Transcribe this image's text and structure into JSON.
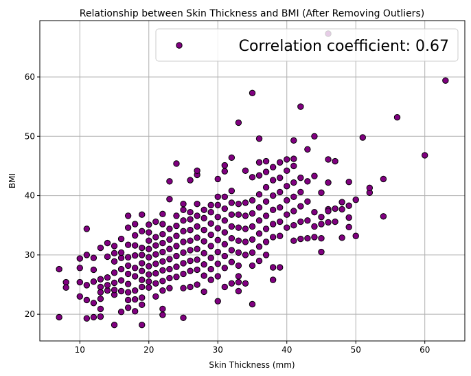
{
  "chart_data": {
    "type": "scatter",
    "title": "Relationship between Skin Thickness and BMI (After Removing Outliers)",
    "xlabel": "Skin Thickness (mm)",
    "ylabel": "BMI",
    "xlim": [
      4.2,
      65.8
    ],
    "ylim": [
      15.5,
      69.5
    ],
    "xticks": [
      10,
      20,
      30,
      40,
      50,
      60
    ],
    "yticks": [
      20,
      30,
      40,
      50,
      60
    ],
    "grid": true,
    "legend_position": "top-right",
    "colors": {
      "marker_fill": "#800080",
      "marker_edge": "#000000",
      "grid": "#b0b0b0"
    },
    "series": [
      {
        "name": "Correlation coefficient: 0.67",
        "points": [
          [
            7,
            19.5
          ],
          [
            7,
            27.6
          ],
          [
            8,
            25.4
          ],
          [
            8,
            24.5
          ],
          [
            10,
            29.4
          ],
          [
            10,
            25.4
          ],
          [
            10,
            23.0
          ],
          [
            10,
            27.8
          ],
          [
            11,
            34.4
          ],
          [
            11,
            30.0
          ],
          [
            11,
            22.4
          ],
          [
            11,
            19.3
          ],
          [
            11,
            24.9
          ],
          [
            12,
            19.5
          ],
          [
            12,
            21.9
          ],
          [
            12,
            25.5
          ],
          [
            12,
            27.5
          ],
          [
            12,
            29.5
          ],
          [
            13,
            19.6
          ],
          [
            13,
            20.9
          ],
          [
            13,
            22.6
          ],
          [
            13,
            23.7
          ],
          [
            13,
            24.6
          ],
          [
            13,
            25.9
          ],
          [
            13,
            31.2
          ],
          [
            14,
            24.0
          ],
          [
            14,
            24.9
          ],
          [
            14,
            26.2
          ],
          [
            14,
            29.7
          ],
          [
            14,
            32.0
          ],
          [
            15,
            18.2
          ],
          [
            15,
            23.3
          ],
          [
            15,
            24.1
          ],
          [
            15,
            25.3
          ],
          [
            15,
            27.0
          ],
          [
            15,
            28.9
          ],
          [
            15,
            30.3
          ],
          [
            15,
            31.5
          ],
          [
            16,
            20.4
          ],
          [
            16,
            23.9
          ],
          [
            16,
            25.7
          ],
          [
            16,
            27.6
          ],
          [
            16,
            29.5
          ],
          [
            16,
            30.4
          ],
          [
            16,
            32.7
          ],
          [
            17,
            21.1
          ],
          [
            17,
            22.4
          ],
          [
            17,
            23.7
          ],
          [
            17,
            25.1
          ],
          [
            17,
            26.8
          ],
          [
            17,
            28.2
          ],
          [
            17,
            29.6
          ],
          [
            17,
            31.7
          ],
          [
            17,
            34.6
          ],
          [
            17,
            36.6
          ],
          [
            18,
            20.5
          ],
          [
            18,
            22.5
          ],
          [
            18,
            24.0
          ],
          [
            18,
            26.4
          ],
          [
            18,
            27.8
          ],
          [
            18,
            29.9
          ],
          [
            18,
            31.6
          ],
          [
            18,
            33.3
          ],
          [
            18,
            35.2
          ],
          [
            19,
            18.2
          ],
          [
            19,
            21.6
          ],
          [
            19,
            22.8
          ],
          [
            19,
            24.6
          ],
          [
            19,
            25.8
          ],
          [
            19,
            27.3
          ],
          [
            19,
            28.6
          ],
          [
            19,
            30.0
          ],
          [
            19,
            31.2
          ],
          [
            19,
            34.0
          ],
          [
            19,
            36.8
          ],
          [
            20,
            24.5
          ],
          [
            20,
            25.5
          ],
          [
            20,
            26.7
          ],
          [
            20,
            28.1
          ],
          [
            20,
            29.6
          ],
          [
            20,
            31.0
          ],
          [
            20,
            32.4
          ],
          [
            20,
            33.8
          ],
          [
            20,
            35.1
          ],
          [
            21,
            23.0
          ],
          [
            21,
            25.2
          ],
          [
            21,
            26.9
          ],
          [
            21,
            28.5
          ],
          [
            21,
            30.1
          ],
          [
            21,
            31.6
          ],
          [
            21,
            33.0
          ],
          [
            21,
            35.6
          ],
          [
            22,
            19.9
          ],
          [
            22,
            20.9
          ],
          [
            22,
            24.0
          ],
          [
            22,
            25.6
          ],
          [
            22,
            27.4
          ],
          [
            22,
            28.9
          ],
          [
            22,
            30.5
          ],
          [
            22,
            32.0
          ],
          [
            22,
            33.5
          ],
          [
            22,
            35.2
          ],
          [
            22,
            36.9
          ],
          [
            23,
            24.4
          ],
          [
            23,
            26.1
          ],
          [
            23,
            27.6
          ],
          [
            23,
            29.3
          ],
          [
            23,
            31.0
          ],
          [
            23,
            32.6
          ],
          [
            23,
            34.4
          ],
          [
            23,
            42.4
          ],
          [
            23,
            39.4
          ],
          [
            24,
            45.4
          ],
          [
            24,
            26.3
          ],
          [
            24,
            28.0
          ],
          [
            24,
            29.8
          ],
          [
            24,
            31.5
          ],
          [
            24,
            33.2
          ],
          [
            24,
            34.9
          ],
          [
            24,
            36.6
          ],
          [
            25,
            19.4
          ],
          [
            25,
            24.4
          ],
          [
            25,
            26.8
          ],
          [
            25,
            28.6
          ],
          [
            25,
            30.4
          ],
          [
            25,
            32.2
          ],
          [
            25,
            34.0
          ],
          [
            25,
            35.8
          ],
          [
            25,
            37.6
          ],
          [
            25,
            38.6
          ],
          [
            26,
            24.6
          ],
          [
            26,
            27.3
          ],
          [
            26,
            29.0
          ],
          [
            26,
            30.8
          ],
          [
            26,
            32.4
          ],
          [
            26,
            34.2
          ],
          [
            26,
            36.0
          ],
          [
            26,
            37.2
          ],
          [
            26,
            42.6
          ],
          [
            27,
            25.0
          ],
          [
            27,
            27.5
          ],
          [
            27,
            29.2
          ],
          [
            27,
            31.0
          ],
          [
            27,
            32.9
          ],
          [
            27,
            34.8
          ],
          [
            27,
            36.6
          ],
          [
            27,
            38.6
          ],
          [
            27,
            43.5
          ],
          [
            27,
            44.2
          ],
          [
            28,
            23.8
          ],
          [
            28,
            26.5
          ],
          [
            28,
            28.4
          ],
          [
            28,
            30.3
          ],
          [
            28,
            32.3
          ],
          [
            28,
            34.2
          ],
          [
            28,
            36.2
          ],
          [
            28,
            37.6
          ],
          [
            29,
            25.8
          ],
          [
            29,
            27.6
          ],
          [
            29,
            29.5
          ],
          [
            29,
            31.5
          ],
          [
            29,
            33.4
          ],
          [
            29,
            35.3
          ],
          [
            29,
            37.2
          ],
          [
            29,
            38.4
          ],
          [
            30,
            22.2
          ],
          [
            30,
            26.4
          ],
          [
            30,
            28.5
          ],
          [
            30,
            30.5
          ],
          [
            30,
            32.5
          ],
          [
            30,
            34.5
          ],
          [
            30,
            36.4
          ],
          [
            30,
            38.4
          ],
          [
            30,
            39.8
          ],
          [
            30,
            42.8
          ],
          [
            31,
            24.6
          ],
          [
            31,
            27.8
          ],
          [
            31,
            29.8
          ],
          [
            31,
            31.8
          ],
          [
            31,
            33.8
          ],
          [
            31,
            35.8
          ],
          [
            31,
            37.8
          ],
          [
            31,
            39.8
          ],
          [
            31,
            44.1
          ],
          [
            31,
            45.1
          ],
          [
            32,
            25.2
          ],
          [
            32,
            28.8
          ],
          [
            32,
            30.8
          ],
          [
            32,
            32.8
          ],
          [
            32,
            34.8
          ],
          [
            32,
            36.8
          ],
          [
            32,
            38.8
          ],
          [
            32,
            40.8
          ],
          [
            32,
            46.4
          ],
          [
            33,
            25.4
          ],
          [
            33,
            23.9
          ],
          [
            33,
            26.4
          ],
          [
            33,
            28.2
          ],
          [
            33,
            30.4
          ],
          [
            33,
            32.4
          ],
          [
            33,
            34.6
          ],
          [
            33,
            36.8
          ],
          [
            33,
            38.6
          ],
          [
            33,
            52.3
          ],
          [
            34,
            25.2
          ],
          [
            34,
            30.0
          ],
          [
            34,
            32.2
          ],
          [
            34,
            34.4
          ],
          [
            34,
            36.6
          ],
          [
            34,
            38.8
          ],
          [
            34,
            44.2
          ],
          [
            35,
            21.7
          ],
          [
            35,
            28.2
          ],
          [
            35,
            30.4
          ],
          [
            35,
            32.6
          ],
          [
            35,
            34.8
          ],
          [
            35,
            37.0
          ],
          [
            35,
            39.2
          ],
          [
            35,
            43.1
          ],
          [
            35,
            57.3
          ],
          [
            36,
            29.0
          ],
          [
            36,
            31.4
          ],
          [
            36,
            33.6
          ],
          [
            36,
            35.8
          ],
          [
            36,
            38.0
          ],
          [
            36,
            40.2
          ],
          [
            36,
            43.4
          ],
          [
            36,
            45.6
          ],
          [
            36,
            49.6
          ],
          [
            37,
            30.0
          ],
          [
            37,
            32.2
          ],
          [
            37,
            34.4
          ],
          [
            37,
            36.6
          ],
          [
            37,
            39.0
          ],
          [
            37,
            41.4
          ],
          [
            37,
            44.0
          ],
          [
            37,
            45.8
          ],
          [
            38,
            25.8
          ],
          [
            38,
            27.9
          ],
          [
            38,
            33.0
          ],
          [
            38,
            35.2
          ],
          [
            38,
            37.6
          ],
          [
            38,
            40.0
          ],
          [
            38,
            42.6
          ],
          [
            38,
            44.8
          ],
          [
            39,
            27.9
          ],
          [
            39,
            33.2
          ],
          [
            39,
            35.6
          ],
          [
            39,
            38.0
          ],
          [
            39,
            40.6
          ],
          [
            39,
            43.0
          ],
          [
            39,
            45.6
          ],
          [
            40,
            34.6
          ],
          [
            40,
            36.8
          ],
          [
            40,
            39.2
          ],
          [
            40,
            41.6
          ],
          [
            40,
            44.2
          ],
          [
            40,
            46.1
          ],
          [
            41,
            32.4
          ],
          [
            41,
            35.0
          ],
          [
            41,
            37.4
          ],
          [
            41,
            39.8
          ],
          [
            41,
            42.2
          ],
          [
            41,
            45.0
          ],
          [
            41,
            46.2
          ],
          [
            41,
            49.3
          ],
          [
            42,
            32.7
          ],
          [
            42,
            35.6
          ],
          [
            42,
            38.2
          ],
          [
            42,
            40.6
          ],
          [
            42,
            43.0
          ],
          [
            42,
            55.0
          ],
          [
            43,
            32.8
          ],
          [
            43,
            35.8
          ],
          [
            43,
            39.0
          ],
          [
            43,
            42.4
          ],
          [
            43,
            47.8
          ],
          [
            44,
            33.0
          ],
          [
            44,
            34.8
          ],
          [
            44,
            37.2
          ],
          [
            44,
            43.3
          ],
          [
            44,
            50.0
          ],
          [
            45,
            30.5
          ],
          [
            45,
            32.8
          ],
          [
            45,
            35.2
          ],
          [
            45,
            36.4
          ],
          [
            45,
            40.5
          ],
          [
            46,
            46.1
          ],
          [
            46,
            67.3
          ],
          [
            46,
            35.5
          ],
          [
            46,
            37.7
          ],
          [
            46,
            42.2
          ],
          [
            46,
            37.4
          ],
          [
            47,
            35.6
          ],
          [
            47,
            37.8
          ],
          [
            47,
            45.8
          ],
          [
            48,
            32.9
          ],
          [
            48,
            38.9
          ],
          [
            48,
            37.7
          ],
          [
            49,
            34.7
          ],
          [
            49,
            36.3
          ],
          [
            49,
            42.3
          ],
          [
            49,
            38.3
          ],
          [
            50,
            33.2
          ],
          [
            50,
            39.3
          ],
          [
            51,
            49.8
          ],
          [
            52,
            40.5
          ],
          [
            52,
            41.3
          ],
          [
            54,
            36.5
          ],
          [
            54,
            42.8
          ],
          [
            56,
            53.2
          ],
          [
            60,
            46.8
          ],
          [
            63,
            59.4
          ]
        ]
      }
    ]
  }
}
